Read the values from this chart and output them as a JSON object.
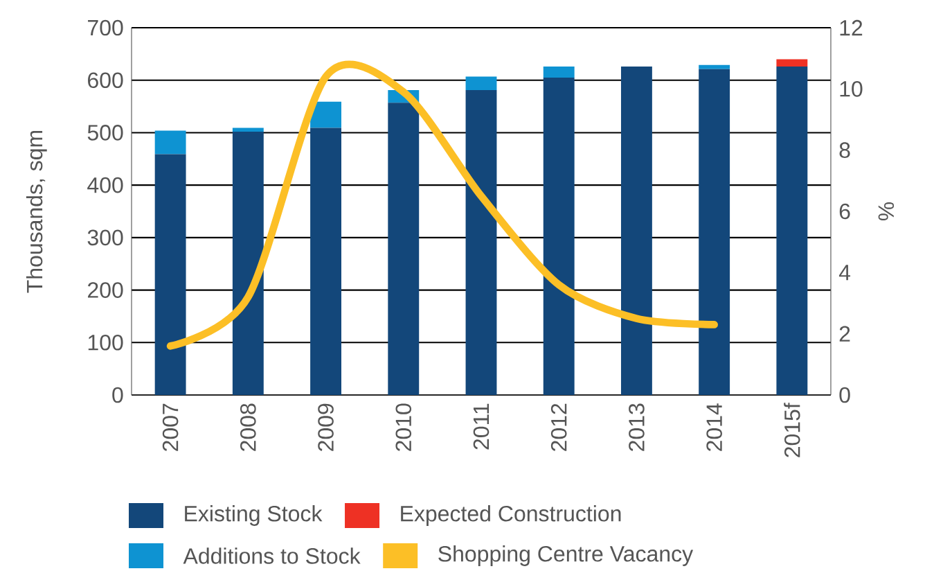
{
  "chart_data": {
    "type": "bar",
    "stacked": true,
    "categories": [
      "2007",
      "2008",
      "2009",
      "2010",
      "2011",
      "2012",
      "2013",
      "2014",
      "2015f"
    ],
    "series": [
      {
        "name": "Existing Stock",
        "color": "#13477a",
        "values": [
          459,
          502,
          509,
          557,
          581,
          605,
          626,
          621,
          626
        ]
      },
      {
        "name": "Additions to Stock",
        "color": "#0e93d2",
        "values": [
          45,
          7,
          50,
          24,
          26,
          21,
          null,
          8,
          null
        ]
      },
      {
        "name": "Expected Construction",
        "color": "#ee3124",
        "values": [
          null,
          null,
          null,
          null,
          null,
          null,
          null,
          null,
          14
        ]
      },
      {
        "name": "Shopping Centre Vacancy",
        "color": "#fcbf26",
        "type": "line",
        "axis": "y2",
        "values": [
          1.6,
          3.2,
          10.4,
          9.9,
          6.5,
          3.6,
          2.5,
          2.3,
          null
        ]
      }
    ],
    "ylabel": "Thousands, sqm",
    "y2label": "%",
    "ylim": [
      0,
      700
    ],
    "yticks": [
      0,
      100,
      200,
      300,
      400,
      500,
      600,
      700
    ],
    "y2lim": [
      0,
      12
    ],
    "y2ticks": [
      0,
      2,
      4,
      6,
      8,
      10,
      12
    ],
    "grid": "y",
    "legend": "bottom"
  }
}
